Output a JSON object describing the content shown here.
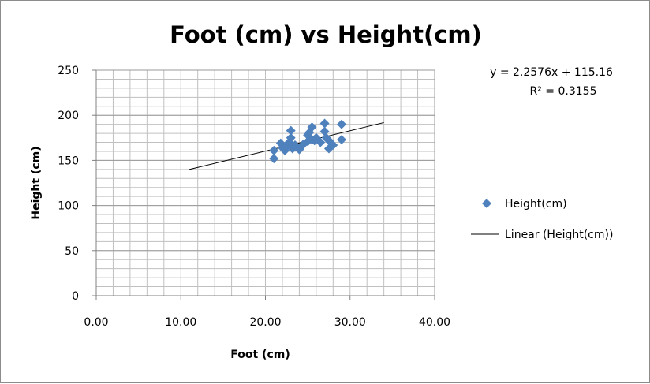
{
  "chart_data": {
    "type": "scatter",
    "title": "Foot (cm) vs Height(cm)",
    "xlabel": "Foot (cm)",
    "ylabel": "Height (cm)",
    "xlim": [
      0,
      40
    ],
    "ylim": [
      0,
      250
    ],
    "x_ticks": [
      "0.00",
      "10.00",
      "20.00",
      "30.00",
      "40.00"
    ],
    "y_ticks": [
      "0",
      "50",
      "100",
      "150",
      "200",
      "250"
    ],
    "grid": true,
    "legend_position": "right",
    "series": [
      {
        "name": "Height(cm)",
        "color": "#4f81bd",
        "marker": "diamond",
        "x": [
          21.0,
          21.0,
          21.8,
          22.0,
          22.3,
          22.5,
          22.8,
          23.0,
          23.0,
          23.2,
          23.5,
          24.0,
          24.2,
          24.5,
          25.0,
          25.0,
          25.2,
          25.5,
          25.5,
          25.8,
          26.0,
          26.5,
          27.0,
          27.0,
          27.2,
          27.5,
          27.5,
          28.0,
          29.0,
          29.0
        ],
        "y": [
          152,
          161,
          169,
          164,
          161,
          166,
          170,
          183,
          175,
          163,
          167,
          162,
          165,
          168,
          171,
          178,
          181,
          187,
          173,
          172,
          175,
          170,
          191,
          182,
          175,
          163,
          172,
          167,
          190,
          173
        ]
      }
    ],
    "trendline": {
      "name": "Linear (Height(cm))",
      "color": "#000000",
      "slope": 2.2576,
      "intercept": 115.16,
      "x_range": [
        11.0,
        34.0
      ],
      "equation": "y = 2.2576x + 115.16",
      "r_squared": "R² = 0.3155"
    }
  }
}
